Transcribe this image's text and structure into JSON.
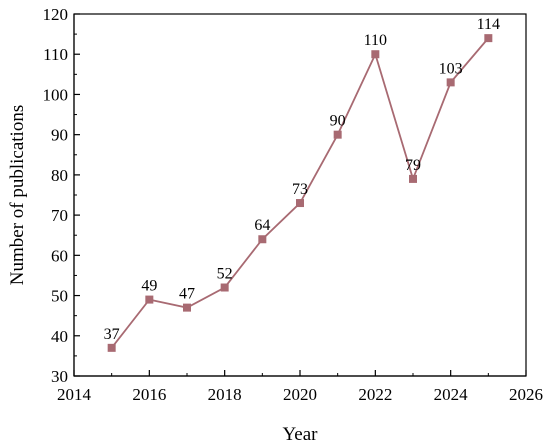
{
  "chart_data": {
    "type": "line",
    "title": "",
    "xlabel": "Year",
    "ylabel": "Number of publications",
    "xlim": [
      2014,
      2026
    ],
    "ylim": [
      30,
      120
    ],
    "xticks": [
      2014,
      2016,
      2018,
      2020,
      2022,
      2024,
      2026
    ],
    "yticks": [
      30,
      40,
      50,
      60,
      70,
      80,
      90,
      100,
      110,
      120
    ],
    "grid": false,
    "legend": "none",
    "series": [
      {
        "x": [
          2015,
          2016,
          2017,
          2018,
          2019,
          2020,
          2021,
          2022,
          2023,
          2024,
          2025
        ],
        "values": [
          37,
          49,
          47,
          52,
          64,
          73,
          90,
          110,
          79,
          103,
          114
        ],
        "data_labels": [
          "37",
          "49",
          "47",
          "52",
          "64",
          "73",
          "90",
          "110",
          "79",
          "103",
          "114"
        ],
        "color": "#a86a72",
        "marker": "square"
      }
    ]
  }
}
